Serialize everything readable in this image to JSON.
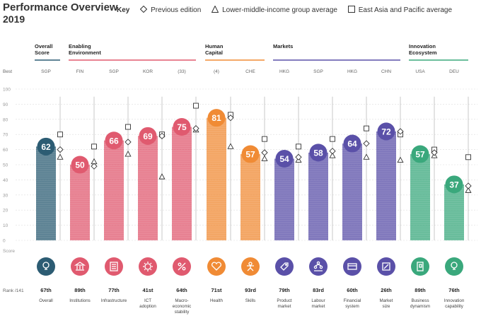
{
  "title": {
    "line1": "Performance Overview",
    "line2": "2019"
  },
  "legend": {
    "key": "Key",
    "previous": "Previous edition",
    "lower_middle": "Lower-middle-income group average",
    "east_asia": "East Asia and Pacific average"
  },
  "axis": {
    "best_label": "Best",
    "score_label": "Score",
    "rank_label": "Rank /141",
    "ticks": [
      0,
      10,
      20,
      30,
      40,
      50,
      60,
      70,
      80,
      90,
      100
    ]
  },
  "colors": {
    "overall": "#2c5c73",
    "enabling": "#e05a6f",
    "human": "#f08b35",
    "markets": "#5a50a8",
    "innovation": "#3aa87c",
    "grid": "#dddddd"
  },
  "groups": [
    {
      "name": "Overall Score",
      "key": "overall"
    },
    {
      "name": "Enabling Environment",
      "key": "enabling"
    },
    {
      "name": "Human Capital",
      "key": "human"
    },
    {
      "name": "Markets",
      "key": "markets"
    },
    {
      "name": "Innovation Ecosystem",
      "key": "innovation"
    }
  ],
  "chart_data": {
    "type": "bar",
    "title": "Performance Overview 2019",
    "ylim": [
      0,
      100
    ],
    "ylabel": "Score",
    "categories": [
      "Overall",
      "Institutions",
      "Infrastructure",
      "ICT adoption",
      "Macro-economic stability",
      "Health",
      "Skills",
      "Product market",
      "Labour market",
      "Financial system",
      "Market size",
      "Business dynamism",
      "Innovation capability"
    ],
    "pillars": [
      {
        "name": "Overall",
        "group": "overall",
        "best": "SGP",
        "score": 62,
        "rank": "67th",
        "prev": 60,
        "lmi": 55,
        "eap": 70
      },
      {
        "name": "Institutions",
        "group": "enabling",
        "best": "FIN",
        "score": 50,
        "rank": "89th",
        "prev": 49,
        "lmi": 52,
        "eap": 62
      },
      {
        "name": "Infrastructure",
        "group": "enabling",
        "best": "SGP",
        "score": 66,
        "rank": "77th",
        "prev": 65,
        "lmi": 57,
        "eap": 75
      },
      {
        "name": "ICT adoption",
        "group": "enabling",
        "best": "KOR",
        "score": 69,
        "rank": "41st",
        "prev": 69,
        "lmi": 42,
        "eap": 70
      },
      {
        "name": "Macro-economic stability",
        "group": "enabling",
        "best": "(33)",
        "score": 75,
        "rank": "64th",
        "prev": 74,
        "lmi": 73,
        "eap": 89
      },
      {
        "name": "Health",
        "group": "human",
        "best": "(4)",
        "score": 81,
        "rank": "71st",
        "prev": 81,
        "lmi": 62,
        "eap": 83
      },
      {
        "name": "Skills",
        "group": "human",
        "best": "CHE",
        "score": 57,
        "rank": "93rd",
        "prev": 58,
        "lmi": 54,
        "eap": 67
      },
      {
        "name": "Product market",
        "group": "markets",
        "best": "HKG",
        "score": 54,
        "rank": "79th",
        "prev": 55,
        "lmi": 53,
        "eap": 62
      },
      {
        "name": "Labour market",
        "group": "markets",
        "best": "SGP",
        "score": 58,
        "rank": "83rd",
        "prev": 59,
        "lmi": 56,
        "eap": 67
      },
      {
        "name": "Financial system",
        "group": "markets",
        "best": "HKG",
        "score": 64,
        "rank": "60th",
        "prev": 64,
        "lmi": 55,
        "eap": 74
      },
      {
        "name": "Market size",
        "group": "markets",
        "best": "CHN",
        "score": 72,
        "rank": "26th",
        "prev": 72,
        "lmi": 53,
        "eap": 70
      },
      {
        "name": "Business dynamism",
        "group": "innovation",
        "best": "USA",
        "score": 57,
        "rank": "89th",
        "prev": 58,
        "lmi": 56,
        "eap": 60
      },
      {
        "name": "Innovation capability",
        "group": "innovation",
        "best": "DEU",
        "score": 37,
        "rank": "76th",
        "prev": 36,
        "lmi": 33,
        "eap": 55
      }
    ]
  },
  "label_lines": [
    [
      "Overall"
    ],
    [
      "Institutions"
    ],
    [
      "Infrastructure"
    ],
    [
      "ICT",
      "adoption"
    ],
    [
      "Macro-",
      "economic",
      "stability"
    ],
    [
      "Health"
    ],
    [
      "Skills"
    ],
    [
      "Product",
      "market"
    ],
    [
      "Labour",
      "market"
    ],
    [
      "Financial",
      "system"
    ],
    [
      "Market",
      "size"
    ],
    [
      "Business",
      "dynamism"
    ],
    [
      "Innovation",
      "capability"
    ]
  ],
  "icons": [
    "bulb-icon",
    "building-icon",
    "infrastructure-icon",
    "chip-icon",
    "macro-icon",
    "heart-icon",
    "person-icon",
    "tag-icon",
    "people-icon",
    "card-icon",
    "expand-icon",
    "door-icon",
    "lightbulb-icon"
  ]
}
